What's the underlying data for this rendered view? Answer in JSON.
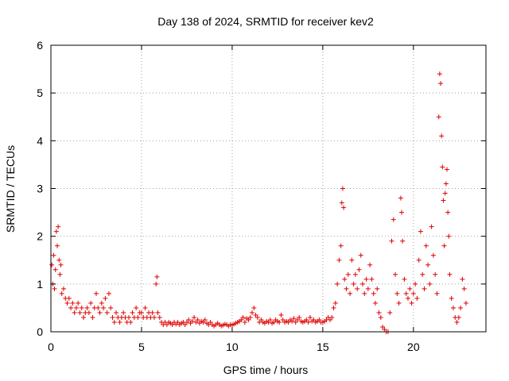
{
  "chart_data": {
    "type": "scatter",
    "title": "Day 138 of 2024, SRMTID for receiver kev2",
    "xlabel": "GPS time / hours",
    "ylabel": "SRMTID / TECUs",
    "xlim": [
      0,
      24
    ],
    "ylim": [
      0,
      6
    ],
    "xticks": [
      0,
      5,
      10,
      15,
      20
    ],
    "yticks": [
      0,
      1,
      2,
      3,
      4,
      5,
      6
    ],
    "grid": true,
    "marker": "+",
    "color": "#e00000",
    "series": [
      {
        "name": "SRMTID",
        "points": [
          [
            0.05,
            1.4
          ],
          [
            0.1,
            1.0
          ],
          [
            0.15,
            1.6
          ],
          [
            0.2,
            0.9
          ],
          [
            0.25,
            1.3
          ],
          [
            0.3,
            2.1
          ],
          [
            0.35,
            1.8
          ],
          [
            0.4,
            2.2
          ],
          [
            0.45,
            1.5
          ],
          [
            0.5,
            1.2
          ],
          [
            0.55,
            1.4
          ],
          [
            0.6,
            0.8
          ],
          [
            0.7,
            0.9
          ],
          [
            0.8,
            0.7
          ],
          [
            0.9,
            0.6
          ],
          [
            1.0,
            0.7
          ],
          [
            1.1,
            0.5
          ],
          [
            1.2,
            0.6
          ],
          [
            1.3,
            0.4
          ],
          [
            1.4,
            0.5
          ],
          [
            1.5,
            0.6
          ],
          [
            1.6,
            0.4
          ],
          [
            1.7,
            0.5
          ],
          [
            1.8,
            0.3
          ],
          [
            1.9,
            0.4
          ],
          [
            2.0,
            0.5
          ],
          [
            2.1,
            0.4
          ],
          [
            2.2,
            0.6
          ],
          [
            2.3,
            0.3
          ],
          [
            2.4,
            0.5
          ],
          [
            2.5,
            0.8
          ],
          [
            2.6,
            0.5
          ],
          [
            2.7,
            0.4
          ],
          [
            2.8,
            0.6
          ],
          [
            2.9,
            0.5
          ],
          [
            3.0,
            0.7
          ],
          [
            3.1,
            0.4
          ],
          [
            3.2,
            0.8
          ],
          [
            3.3,
            0.5
          ],
          [
            3.4,
            0.3
          ],
          [
            3.5,
            0.2
          ],
          [
            3.6,
            0.4
          ],
          [
            3.7,
            0.3
          ],
          [
            3.8,
            0.2
          ],
          [
            3.9,
            0.3
          ],
          [
            4.0,
            0.4
          ],
          [
            4.1,
            0.3
          ],
          [
            4.2,
            0.2
          ],
          [
            4.3,
            0.3
          ],
          [
            4.4,
            0.2
          ],
          [
            4.5,
            0.4
          ],
          [
            4.6,
            0.3
          ],
          [
            4.7,
            0.5
          ],
          [
            4.8,
            0.3
          ],
          [
            4.9,
            0.4
          ],
          [
            5.0,
            0.4
          ],
          [
            5.1,
            0.3
          ],
          [
            5.2,
            0.5
          ],
          [
            5.3,
            0.3
          ],
          [
            5.4,
            0.4
          ],
          [
            5.5,
            0.3
          ],
          [
            5.6,
            0.4
          ],
          [
            5.7,
            0.3
          ],
          [
            5.8,
            1.0
          ],
          [
            5.85,
            1.15
          ],
          [
            5.9,
            0.4
          ],
          [
            6.0,
            0.3
          ],
          [
            6.1,
            0.2
          ],
          [
            6.2,
            0.15
          ],
          [
            6.3,
            0.2
          ],
          [
            6.4,
            0.15
          ],
          [
            6.5,
            0.2
          ],
          [
            6.6,
            0.18
          ],
          [
            6.7,
            0.15
          ],
          [
            6.8,
            0.2
          ],
          [
            6.9,
            0.16
          ],
          [
            7.0,
            0.2
          ],
          [
            7.1,
            0.15
          ],
          [
            7.2,
            0.18
          ],
          [
            7.3,
            0.2
          ],
          [
            7.4,
            0.15
          ],
          [
            7.5,
            0.2
          ],
          [
            7.6,
            0.25
          ],
          [
            7.7,
            0.18
          ],
          [
            7.8,
            0.22
          ],
          [
            7.9,
            0.3
          ],
          [
            8.0,
            0.2
          ],
          [
            8.1,
            0.25
          ],
          [
            8.2,
            0.18
          ],
          [
            8.3,
            0.22
          ],
          [
            8.4,
            0.2
          ],
          [
            8.5,
            0.25
          ],
          [
            8.6,
            0.18
          ],
          [
            8.7,
            0.15
          ],
          [
            8.8,
            0.2
          ],
          [
            8.9,
            0.15
          ],
          [
            9.0,
            0.12
          ],
          [
            9.1,
            0.15
          ],
          [
            9.2,
            0.18
          ],
          [
            9.3,
            0.15
          ],
          [
            9.4,
            0.12
          ],
          [
            9.5,
            0.14
          ],
          [
            9.6,
            0.16
          ],
          [
            9.7,
            0.15
          ],
          [
            9.8,
            0.12
          ],
          [
            9.9,
            0.15
          ],
          [
            10.0,
            0.14
          ],
          [
            10.1,
            0.16
          ],
          [
            10.2,
            0.18
          ],
          [
            10.3,
            0.2
          ],
          [
            10.4,
            0.22
          ],
          [
            10.5,
            0.25
          ],
          [
            10.6,
            0.3
          ],
          [
            10.7,
            0.2
          ],
          [
            10.8,
            0.28
          ],
          [
            10.9,
            0.25
          ],
          [
            11.0,
            0.3
          ],
          [
            11.1,
            0.4
          ],
          [
            11.2,
            0.5
          ],
          [
            11.3,
            0.35
          ],
          [
            11.4,
            0.3
          ],
          [
            11.5,
            0.2
          ],
          [
            11.6,
            0.25
          ],
          [
            11.7,
            0.2
          ],
          [
            11.8,
            0.18
          ],
          [
            11.9,
            0.22
          ],
          [
            12.0,
            0.2
          ],
          [
            12.1,
            0.25
          ],
          [
            12.2,
            0.18
          ],
          [
            12.3,
            0.2
          ],
          [
            12.4,
            0.25
          ],
          [
            12.5,
            0.22
          ],
          [
            12.6,
            0.2
          ],
          [
            12.7,
            0.35
          ],
          [
            12.8,
            0.25
          ],
          [
            12.9,
            0.2
          ],
          [
            13.0,
            0.22
          ],
          [
            13.1,
            0.2
          ],
          [
            13.2,
            0.25
          ],
          [
            13.3,
            0.22
          ],
          [
            13.4,
            0.28
          ],
          [
            13.5,
            0.2
          ],
          [
            13.6,
            0.25
          ],
          [
            13.7,
            0.3
          ],
          [
            13.8,
            0.22
          ],
          [
            13.9,
            0.2
          ],
          [
            14.0,
            0.22
          ],
          [
            14.1,
            0.25
          ],
          [
            14.2,
            0.2
          ],
          [
            14.3,
            0.3
          ],
          [
            14.4,
            0.22
          ],
          [
            14.5,
            0.25
          ],
          [
            14.6,
            0.2
          ],
          [
            14.7,
            0.22
          ],
          [
            14.8,
            0.25
          ],
          [
            14.9,
            0.2
          ],
          [
            15.0,
            0.2
          ],
          [
            15.1,
            0.22
          ],
          [
            15.2,
            0.25
          ],
          [
            15.3,
            0.3
          ],
          [
            15.4,
            0.25
          ],
          [
            15.5,
            0.3
          ],
          [
            15.6,
            0.5
          ],
          [
            15.7,
            0.6
          ],
          [
            15.8,
            1.0
          ],
          [
            15.9,
            1.5
          ],
          [
            16.0,
            1.8
          ],
          [
            16.05,
            2.7
          ],
          [
            16.1,
            3.0
          ],
          [
            16.15,
            2.6
          ],
          [
            16.2,
            1.1
          ],
          [
            16.3,
            0.9
          ],
          [
            16.4,
            1.2
          ],
          [
            16.5,
            0.8
          ],
          [
            16.6,
            1.5
          ],
          [
            16.7,
            1.0
          ],
          [
            16.8,
            1.2
          ],
          [
            16.9,
            0.9
          ],
          [
            17.0,
            1.3
          ],
          [
            17.1,
            1.6
          ],
          [
            17.2,
            1.0
          ],
          [
            17.3,
            0.8
          ],
          [
            17.4,
            1.1
          ],
          [
            17.5,
            0.9
          ],
          [
            17.6,
            1.4
          ],
          [
            17.7,
            1.1
          ],
          [
            17.8,
            0.8
          ],
          [
            17.9,
            0.6
          ],
          [
            18.0,
            0.9
          ],
          [
            18.1,
            0.4
          ],
          [
            18.2,
            0.3
          ],
          [
            18.3,
            0.1
          ],
          [
            18.4,
            0.05
          ],
          [
            18.5,
            0.0
          ],
          [
            18.6,
            0.0
          ],
          [
            18.7,
            0.4
          ],
          [
            18.8,
            1.9
          ],
          [
            18.9,
            2.35
          ],
          [
            19.0,
            1.2
          ],
          [
            19.1,
            0.8
          ],
          [
            19.2,
            0.6
          ],
          [
            19.3,
            2.8
          ],
          [
            19.35,
            2.5
          ],
          [
            19.4,
            1.9
          ],
          [
            19.5,
            1.1
          ],
          [
            19.6,
            0.8
          ],
          [
            19.7,
            0.7
          ],
          [
            19.8,
            0.9
          ],
          [
            19.9,
            0.6
          ],
          [
            20.0,
            0.8
          ],
          [
            20.1,
            1.0
          ],
          [
            20.2,
            0.7
          ],
          [
            20.3,
            1.5
          ],
          [
            20.4,
            2.1
          ],
          [
            20.5,
            1.2
          ],
          [
            20.6,
            0.9
          ],
          [
            20.7,
            1.8
          ],
          [
            20.8,
            1.4
          ],
          [
            20.9,
            1.0
          ],
          [
            21.0,
            2.2
          ],
          [
            21.1,
            1.6
          ],
          [
            21.2,
            1.2
          ],
          [
            21.3,
            0.8
          ],
          [
            21.4,
            4.5
          ],
          [
            21.45,
            5.4
          ],
          [
            21.5,
            5.2
          ],
          [
            21.55,
            4.1
          ],
          [
            21.6,
            3.45
          ],
          [
            21.65,
            2.75
          ],
          [
            21.7,
            1.8
          ],
          [
            21.75,
            2.9
          ],
          [
            21.8,
            3.1
          ],
          [
            21.85,
            3.4
          ],
          [
            21.9,
            2.5
          ],
          [
            21.95,
            2.0
          ],
          [
            22.0,
            1.2
          ],
          [
            22.1,
            0.7
          ],
          [
            22.2,
            0.5
          ],
          [
            22.3,
            0.3
          ],
          [
            22.4,
            0.2
          ],
          [
            22.5,
            0.3
          ],
          [
            22.6,
            0.5
          ],
          [
            22.7,
            1.1
          ],
          [
            22.8,
            0.9
          ],
          [
            22.9,
            0.6
          ]
        ]
      }
    ]
  }
}
